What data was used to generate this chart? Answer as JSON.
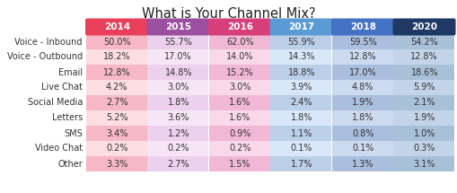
{
  "title": "What is Your Channel Mix?",
  "columns": [
    "2014",
    "2015",
    "2016",
    "2017",
    "2018",
    "2020"
  ],
  "rows": [
    "Voice - Inbound",
    "Voice - Outbound",
    "Email",
    "Live Chat",
    "Social Media",
    "Letters",
    "SMS",
    "Video Chat",
    "Other"
  ],
  "values": [
    [
      "50.0%",
      "55.7%",
      "62.0%",
      "55.9%",
      "59.5%",
      "54.2%"
    ],
    [
      "18.2%",
      "17.0%",
      "14.0%",
      "14.3%",
      "12.8%",
      "12.8%"
    ],
    [
      "12.8%",
      "14.8%",
      "15.2%",
      "18.8%",
      "17.0%",
      "18.6%"
    ],
    [
      "4.2%",
      "3.0%",
      "3.0%",
      "3.9%",
      "4.8%",
      "5.9%"
    ],
    [
      "2.7%",
      "1.8%",
      "1.6%",
      "2.4%",
      "1.9%",
      "2.1%"
    ],
    [
      "5.2%",
      "3.6%",
      "1.6%",
      "1.8%",
      "1.8%",
      "1.9%"
    ],
    [
      "3.4%",
      "1.2%",
      "0.9%",
      "1.1%",
      "0.8%",
      "1.0%"
    ],
    [
      "0.2%",
      "0.2%",
      "0.2%",
      "0.1%",
      "0.1%",
      "0.3%"
    ],
    [
      "3.3%",
      "2.7%",
      "1.5%",
      "1.7%",
      "1.3%",
      "3.1%"
    ]
  ],
  "header_colors": [
    "#E8405A",
    "#9B4FA0",
    "#D63F7A",
    "#5B9BD5",
    "#4472C4",
    "#1F3864"
  ],
  "header_text_color": "#FFFFFF",
  "col_bg_colors": [
    [
      "#F5B8C4",
      "#EDD0ED",
      "#F0B8D4",
      "#BBCFE8",
      "#AABEDD",
      "#A8C0D8"
    ],
    [
      "#FCDDE2",
      "#F5E5F5",
      "#FAD8EC",
      "#D8E8F8",
      "#CCDAF0",
      "#C4D4E8"
    ]
  ],
  "row_label_color": "#333333",
  "value_color": "#333333",
  "background_color": "#FFFFFF",
  "title_fontsize": 10.5,
  "header_fontsize": 7.5,
  "cell_fontsize": 7.0,
  "label_fontsize": 7.0
}
